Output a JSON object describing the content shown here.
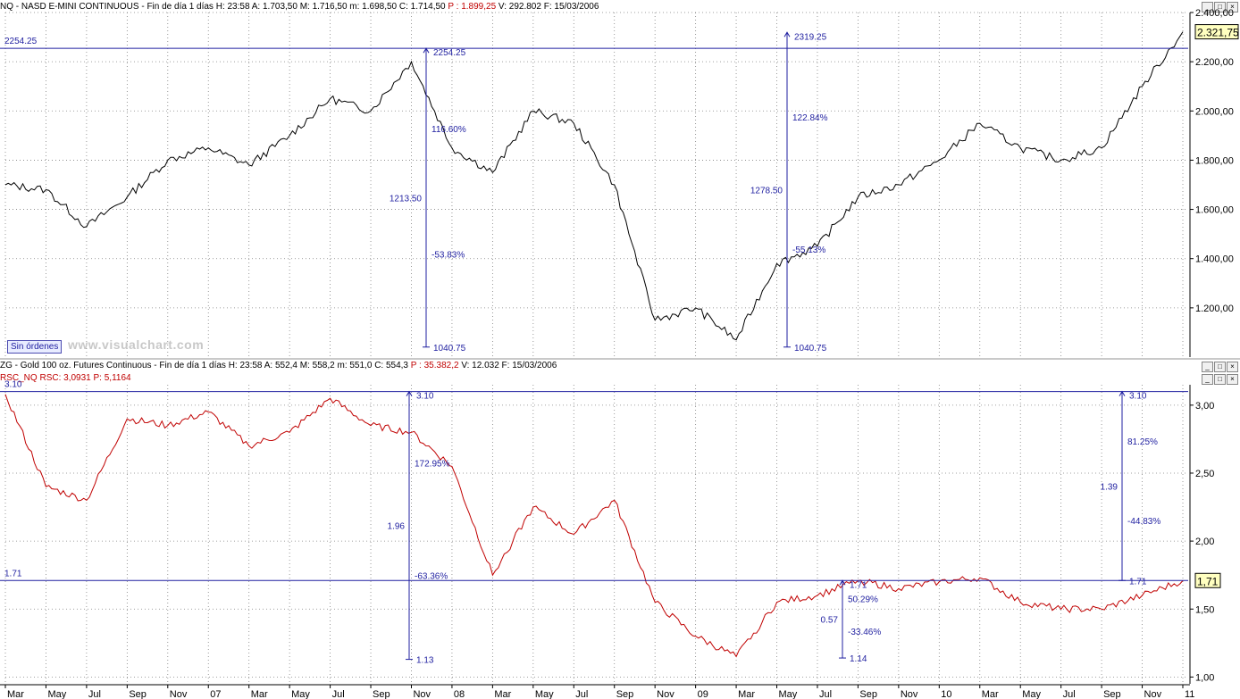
{
  "top_panel": {
    "header": {
      "symbol": "NQ - NASD E-MINI CONTINUOUS - Fin de día 1 días",
      "h": "H: 23:58",
      "a": "A: 1.703,50",
      "m": "M: 1.716,50",
      "mn": "m: 1.698,50",
      "c": "C: 1.714,50",
      "p": "P : 1.899,25",
      "v": "V: 292.802",
      "f": "F: 15/03/2006"
    },
    "badge": "Sin órdenes",
    "watermark": "www.visualchart.com"
  },
  "bottom_panel": {
    "header": {
      "symbol": "ZG - Gold 100 oz. Futures Continuous - Fin de día 1 días",
      "h": "H: 23:58",
      "a": "A: 552,4",
      "m": "M: 558,2",
      "mn": "m: 551,0",
      "c": "C: 554,3",
      "p": "P : 35.382,2",
      "v": "V: 12.032",
      "f": "F: 15/03/2006"
    },
    "indicator": {
      "name": "RSC_NQ",
      "value": "RSC: 3,0931",
      "p": "P: 5,1164"
    }
  },
  "window_buttons": [
    "_",
    "□",
    "×"
  ],
  "colors": {
    "price_line": "#000000",
    "ratio_line": "#c00000",
    "annotation": "#1f1fa0",
    "grid": "#808080",
    "price_badge": "#ffffc0"
  },
  "chart_data": [
    {
      "type": "line",
      "series": [
        {
          "x": [
            "2006-03",
            "2006-05",
            "2006-07",
            "2006-09",
            "2006-11",
            "2007-01",
            "2007-03",
            "2007-05",
            "2007-07",
            "2007-09",
            "2007-11",
            "2008-01",
            "2008-03",
            "2008-05",
            "2008-07",
            "2008-09",
            "2008-11",
            "2009-01",
            "2009-03",
            "2009-05",
            "2009-07",
            "2009-09",
            "2009-11",
            "2010-01",
            "2010-03",
            "2010-05",
            "2010-07",
            "2010-09",
            "2010-11",
            "2011-01"
          ],
          "values": [
            1700,
            1680,
            1530,
            1650,
            1800,
            1850,
            1780,
            1900,
            2050,
            2000,
            2200,
            1850,
            1750,
            2000,
            1950,
            1700,
            1150,
            1200,
            1070,
            1380,
            1450,
            1650,
            1700,
            1800,
            1950,
            1850,
            1800,
            1850,
            2100,
            2321.75
          ]
        }
      ],
      "xticks": [
        "Mar",
        "May",
        "Jul",
        "Sep",
        "Nov",
        "07",
        "Mar",
        "May",
        "Jul",
        "Sep",
        "Nov",
        "08",
        "Mar",
        "May",
        "Jul",
        "Sep",
        "Nov",
        "09",
        "Mar",
        "May",
        "Jul",
        "Sep",
        "Nov",
        "10",
        "Mar",
        "May",
        "Jul",
        "Sep",
        "Nov",
        "11"
      ],
      "yticks": [
        "1.200,00",
        "1.400,00",
        "1.600,00",
        "1.800,00",
        "2.000,00",
        "2.200,00",
        "2.400,00"
      ],
      "ylim": [
        1000,
        2400
      ],
      "last_value": "2.321,75",
      "levels": [
        {
          "value": 2254.25,
          "label": "2254.25"
        }
      ],
      "annotations": [
        {
          "top": 2254.25,
          "bottom": 1040.75,
          "top_label": "2254.25",
          "bottom_label": "1040.75",
          "range": "1213.50",
          "pct_up": "116.60%",
          "pct_down": "-53.83%"
        },
        {
          "top": 2319.25,
          "bottom": 1040.75,
          "top_label": "2319.25",
          "bottom_label": "1040.75",
          "range": "1278.50",
          "pct_up": "122.84%",
          "pct_down": "-55.13%"
        }
      ]
    },
    {
      "type": "line",
      "series": [
        {
          "name": "RSC_NQ",
          "x": [
            "2006-03",
            "2006-05",
            "2006-07",
            "2006-09",
            "2006-11",
            "2007-01",
            "2007-03",
            "2007-05",
            "2007-07",
            "2007-09",
            "2007-11",
            "2008-01",
            "2008-03",
            "2008-05",
            "2008-07",
            "2008-09",
            "2008-11",
            "2009-01",
            "2009-03",
            "2009-05",
            "2009-07",
            "2009-09",
            "2009-11",
            "2010-01",
            "2010-03",
            "2010-05",
            "2010-07",
            "2010-09",
            "2010-11",
            "2011-01"
          ],
          "values": [
            3.08,
            2.4,
            2.3,
            2.9,
            2.85,
            2.95,
            2.7,
            2.8,
            3.05,
            2.85,
            2.8,
            2.55,
            1.75,
            2.25,
            2.05,
            2.3,
            1.55,
            1.3,
            1.15,
            1.55,
            1.6,
            1.71,
            1.65,
            1.7,
            1.73,
            1.55,
            1.5,
            1.5,
            1.6,
            1.71
          ]
        }
      ],
      "yticks": [
        "1,00",
        "1,50",
        "2,00",
        "2,50",
        "3,00"
      ],
      "ylim": [
        0.95,
        3.15
      ],
      "last_value": "1,71",
      "levels": [
        {
          "value": 3.1,
          "label": "3.10"
        },
        {
          "value": 1.71,
          "label": "1.71"
        }
      ],
      "annotations": [
        {
          "top": 3.1,
          "bottom": 1.13,
          "top_label": "3.10",
          "bottom_label": "1.13",
          "range": "1.96",
          "pct_up": "172.95%",
          "pct_down": "-63.36%"
        },
        {
          "top": 1.71,
          "bottom": 1.14,
          "top_label": "1.71",
          "bottom_label": "1.14",
          "range": "0.57",
          "pct_up": "50.29%",
          "pct_down": "-33.46%"
        },
        {
          "top": 3.1,
          "bottom": 1.71,
          "top_label": "3.10",
          "bottom_label": "1.71",
          "range": "1.39",
          "pct_up": "81.25%",
          "pct_down": "-44.83%"
        }
      ]
    }
  ]
}
